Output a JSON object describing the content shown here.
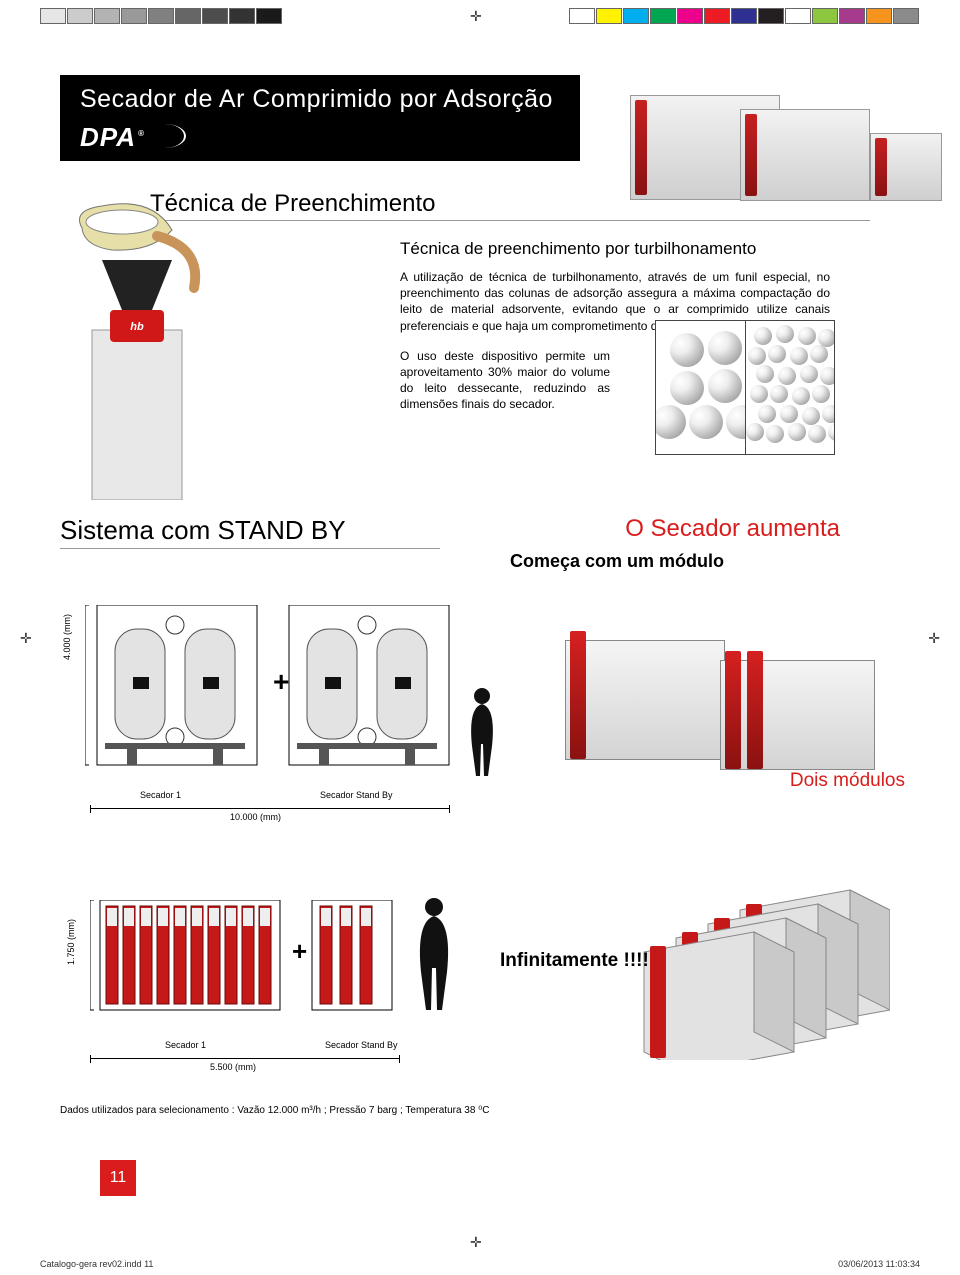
{
  "registration_colors_left": [
    "#e6e6e6",
    "#cccccc",
    "#b3b3b3",
    "#999999",
    "#808080",
    "#666666",
    "#4d4d4d",
    "#333333",
    "#1a1a1a"
  ],
  "registration_colors_right": [
    "#ffffff",
    "#fff200",
    "#00aeef",
    "#00a651",
    "#ec008c",
    "#ed1c24",
    "#2e3192",
    "#231f20",
    "#ffffff",
    "#8dc63f",
    "#a63b8e",
    "#f7941d",
    "#8b8b8b"
  ],
  "banner": {
    "title": "Secador de Ar Comprimido por Adsorção",
    "logo": "DPA",
    "logo_reg": "®"
  },
  "tecnica": {
    "section_title": "Técnica de Preenchimento",
    "subhead": "Técnica de preenchimento por turbilhonamento",
    "p1": "A utilização de técnica de turbilhonamento, através de um funil especial, no preenchimento das colunas de adsorção assegura a máxima compactação do leito de material adsorvente, evitando que o ar comprimido utilize canais preferenciais e que haja um comprometimento do ponto de orvalho desejado.",
    "p2": "O uso deste dispositivo permite um aproveitamento 30% maior do volume do leito dessecante, reduzindo as dimensões finais do secador."
  },
  "standby": {
    "title": "Sistema com STAND BY",
    "aumenta": "O Secador aumenta",
    "comeca": "Começa com um módulo",
    "dois_modulos": "Dois módulos",
    "infinitamente": "Infinitamente !!!!"
  },
  "diagram1": {
    "y_label": "4.000 (mm)",
    "sec1": "Secador 1",
    "sec2": "Secador Stand By",
    "bottom_dim": "10.000 (mm)"
  },
  "diagram2": {
    "y_label": "1.750 (mm)",
    "sec1": "Secador 1",
    "sec2": "Secador Stand By",
    "bottom_dim": "5.500 (mm)"
  },
  "footnote": "Dados utilizados para selecionamento : Vazão 12.000 m³/h ; Pressão 7 barg ; Temperatura  38 ⁰C",
  "page_num": "11",
  "footer": {
    "left": "Catalogo-gera rev02.indd   11",
    "right": "03/06/2013   11:03:34"
  },
  "balls": {
    "large": [
      [
        14,
        12,
        34
      ],
      [
        52,
        10,
        34
      ],
      [
        14,
        50,
        34
      ],
      [
        52,
        48,
        34
      ],
      [
        33,
        84,
        34
      ],
      [
        -4,
        84,
        34
      ],
      [
        70,
        84,
        34
      ]
    ],
    "small": [
      [
        8,
        6,
        18
      ],
      [
        30,
        4,
        18
      ],
      [
        52,
        6,
        18
      ],
      [
        72,
        8,
        18
      ],
      [
        2,
        26,
        18
      ],
      [
        22,
        24,
        18
      ],
      [
        44,
        26,
        18
      ],
      [
        64,
        24,
        18
      ],
      [
        10,
        44,
        18
      ],
      [
        32,
        46,
        18
      ],
      [
        54,
        44,
        18
      ],
      [
        74,
        46,
        18
      ],
      [
        4,
        64,
        18
      ],
      [
        24,
        64,
        18
      ],
      [
        46,
        66,
        18
      ],
      [
        66,
        64,
        18
      ],
      [
        12,
        84,
        18
      ],
      [
        34,
        84,
        18
      ],
      [
        56,
        86,
        18
      ],
      [
        76,
        84,
        18
      ],
      [
        0,
        102,
        18
      ],
      [
        20,
        104,
        18
      ],
      [
        42,
        102,
        18
      ],
      [
        62,
        104,
        18
      ],
      [
        82,
        102,
        18
      ]
    ]
  },
  "colors": {
    "accent_red": "#d91c1c",
    "black": "#000000"
  }
}
